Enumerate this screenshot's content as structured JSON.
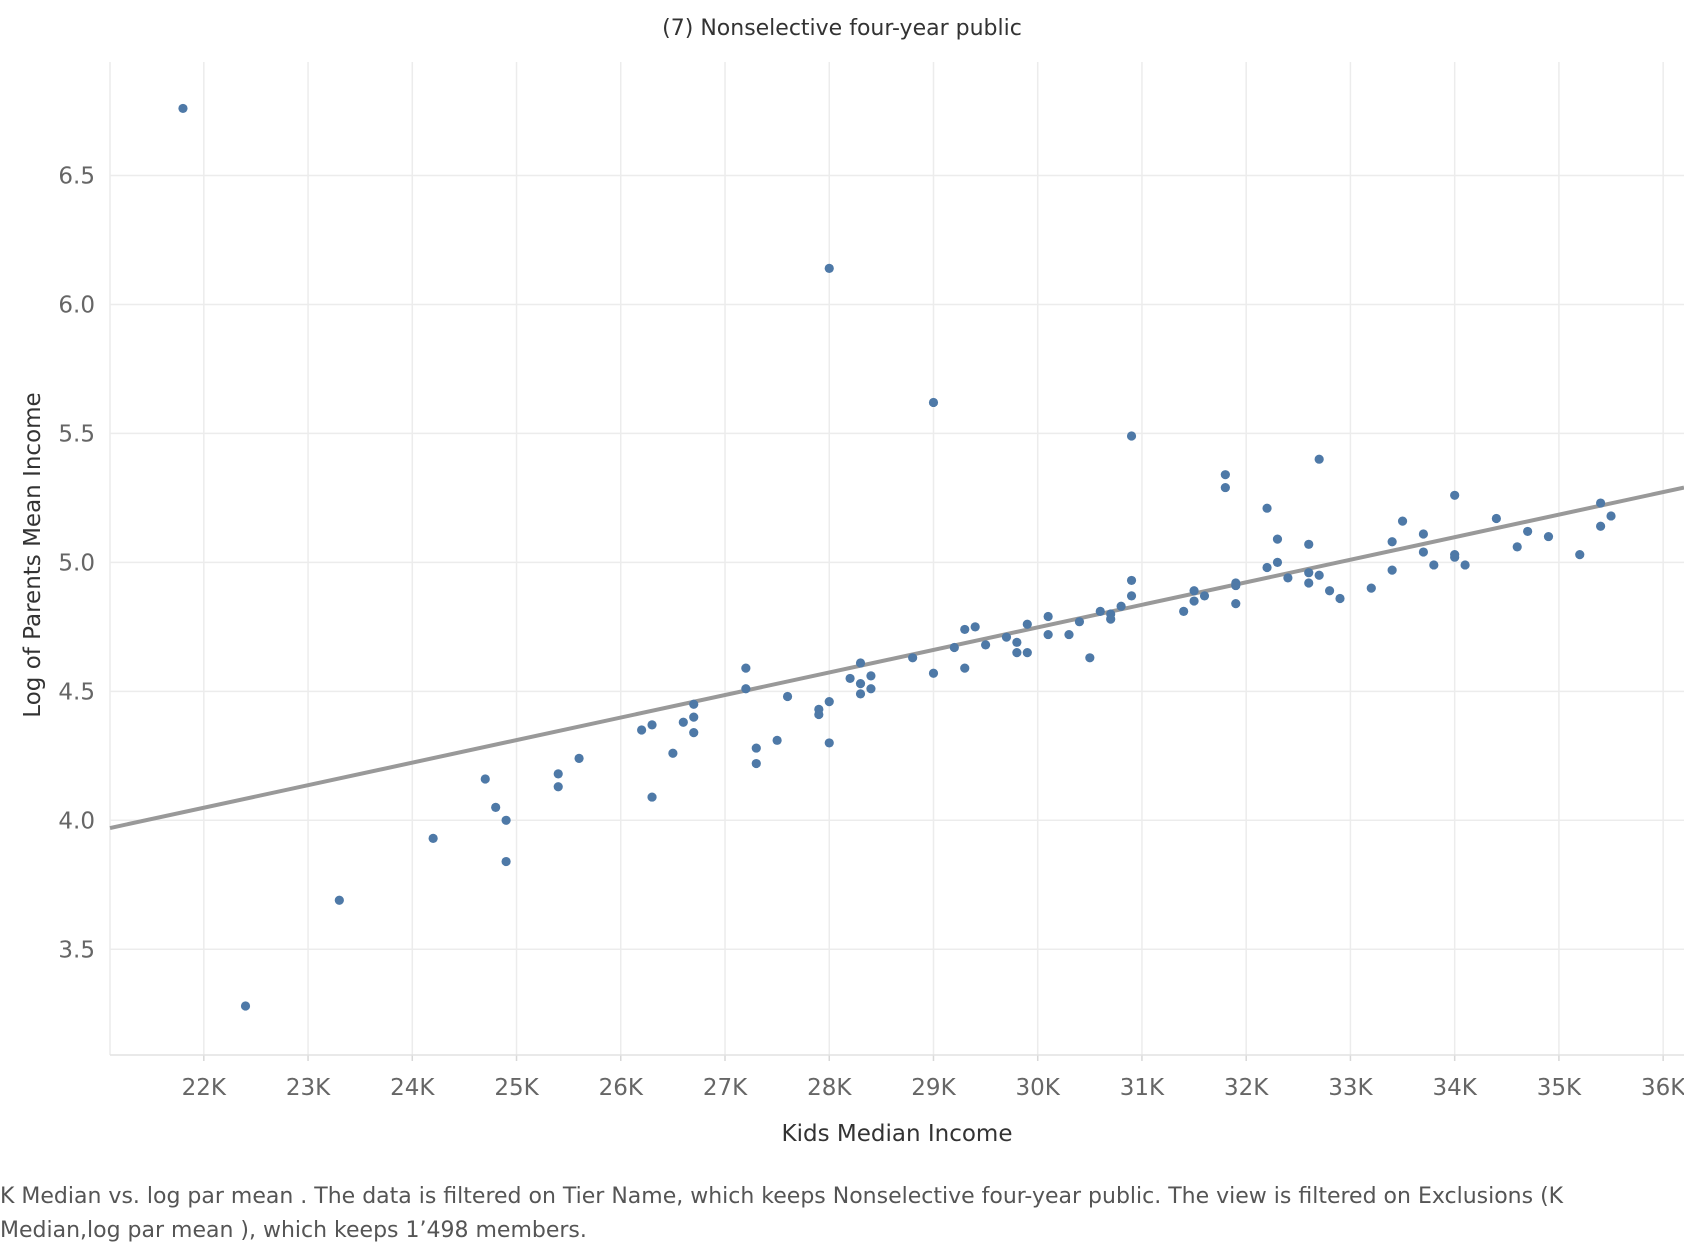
{
  "colors": {
    "point": "#4e79a7",
    "trend": "#999999",
    "grid": "#ececec"
  },
  "caption": "K Median vs. log par mean . The data is filtered on Tier Name, which keeps Nonselective four-year public. The view is filtered on Exclusions (K Median,log par mean ), which keeps 1’498 members.",
  "chart_data": {
    "type": "scatter",
    "title": "(7) Nonselective four-year public",
    "xlabel": "Kids Median Income",
    "ylabel": "Log of Parents Mean Income",
    "xlim": [
      21100,
      36200
    ],
    "ylim": [
      3.09,
      6.94
    ],
    "x_ticks": [
      22000,
      23000,
      24000,
      25000,
      26000,
      27000,
      28000,
      29000,
      30000,
      31000,
      32000,
      33000,
      34000,
      35000,
      36000
    ],
    "x_tick_labels": [
      "22K",
      "23K",
      "24K",
      "25K",
      "26K",
      "27K",
      "28K",
      "29K",
      "30K",
      "31K",
      "32K",
      "33K",
      "34K",
      "35K",
      "36K"
    ],
    "y_ticks": [
      3.5,
      4.0,
      4.5,
      5.0,
      5.5,
      6.0,
      6.5
    ],
    "y_tick_labels": [
      "3.5",
      "4.0",
      "4.5",
      "5.0",
      "5.5",
      "6.0",
      "6.5"
    ],
    "grid": true,
    "trend_line": {
      "x": [
        21100,
        36200
      ],
      "y": [
        3.97,
        5.29
      ]
    },
    "x": [
      21800,
      22400,
      23300,
      24200,
      24700,
      24800,
      24900,
      24900,
      25400,
      25400,
      25600,
      26200,
      26300,
      26300,
      26500,
      26600,
      26700,
      26700,
      26700,
      27200,
      27200,
      27300,
      27300,
      27500,
      27600,
      27900,
      27900,
      28000,
      28000,
      28000,
      28200,
      28300,
      28300,
      28300,
      28400,
      28400,
      28800,
      29000,
      29000,
      29200,
      29300,
      29300,
      29400,
      29500,
      29700,
      29800,
      29800,
      29900,
      29900,
      30100,
      30100,
      30300,
      30400,
      30500,
      30600,
      30700,
      30700,
      30800,
      30900,
      30900,
      30900,
      31400,
      31500,
      31500,
      31600,
      31800,
      31800,
      31900,
      31900,
      31900,
      32200,
      32200,
      32300,
      32300,
      32400,
      32600,
      32600,
      32600,
      32700,
      32700,
      32800,
      32900,
      33200,
      33400,
      33400,
      33500,
      33700,
      33700,
      33800,
      34000,
      34000,
      34000,
      34100,
      34400,
      34600,
      34700,
      34900,
      35200,
      35400,
      35400,
      35500
    ],
    "y": [
      6.76,
      3.28,
      3.69,
      3.93,
      4.16,
      4.05,
      4.0,
      3.84,
      4.18,
      4.13,
      4.24,
      4.35,
      4.37,
      4.09,
      4.26,
      4.38,
      4.45,
      4.4,
      4.34,
      4.59,
      4.51,
      4.28,
      4.22,
      4.31,
      4.48,
      4.43,
      4.41,
      4.46,
      4.3,
      6.14,
      4.55,
      4.61,
      4.53,
      4.49,
      4.56,
      4.51,
      4.63,
      5.62,
      4.57,
      4.67,
      4.74,
      4.59,
      4.75,
      4.68,
      4.71,
      4.69,
      4.65,
      4.76,
      4.65,
      4.79,
      4.72,
      4.72,
      4.77,
      4.63,
      4.81,
      4.8,
      4.78,
      4.83,
      5.49,
      4.93,
      4.87,
      4.81,
      4.89,
      4.85,
      4.87,
      5.34,
      5.29,
      4.91,
      4.92,
      4.84,
      5.21,
      4.98,
      5.09,
      5.0,
      4.94,
      5.07,
      4.96,
      4.92,
      5.4,
      4.95,
      4.89,
      4.86,
      4.9,
      5.08,
      4.97,
      5.16,
      5.11,
      5.04,
      4.99,
      5.26,
      5.03,
      5.02,
      4.99,
      5.17,
      5.06,
      5.12,
      5.1,
      5.03,
      5.23,
      5.14,
      5.18
    ]
  }
}
